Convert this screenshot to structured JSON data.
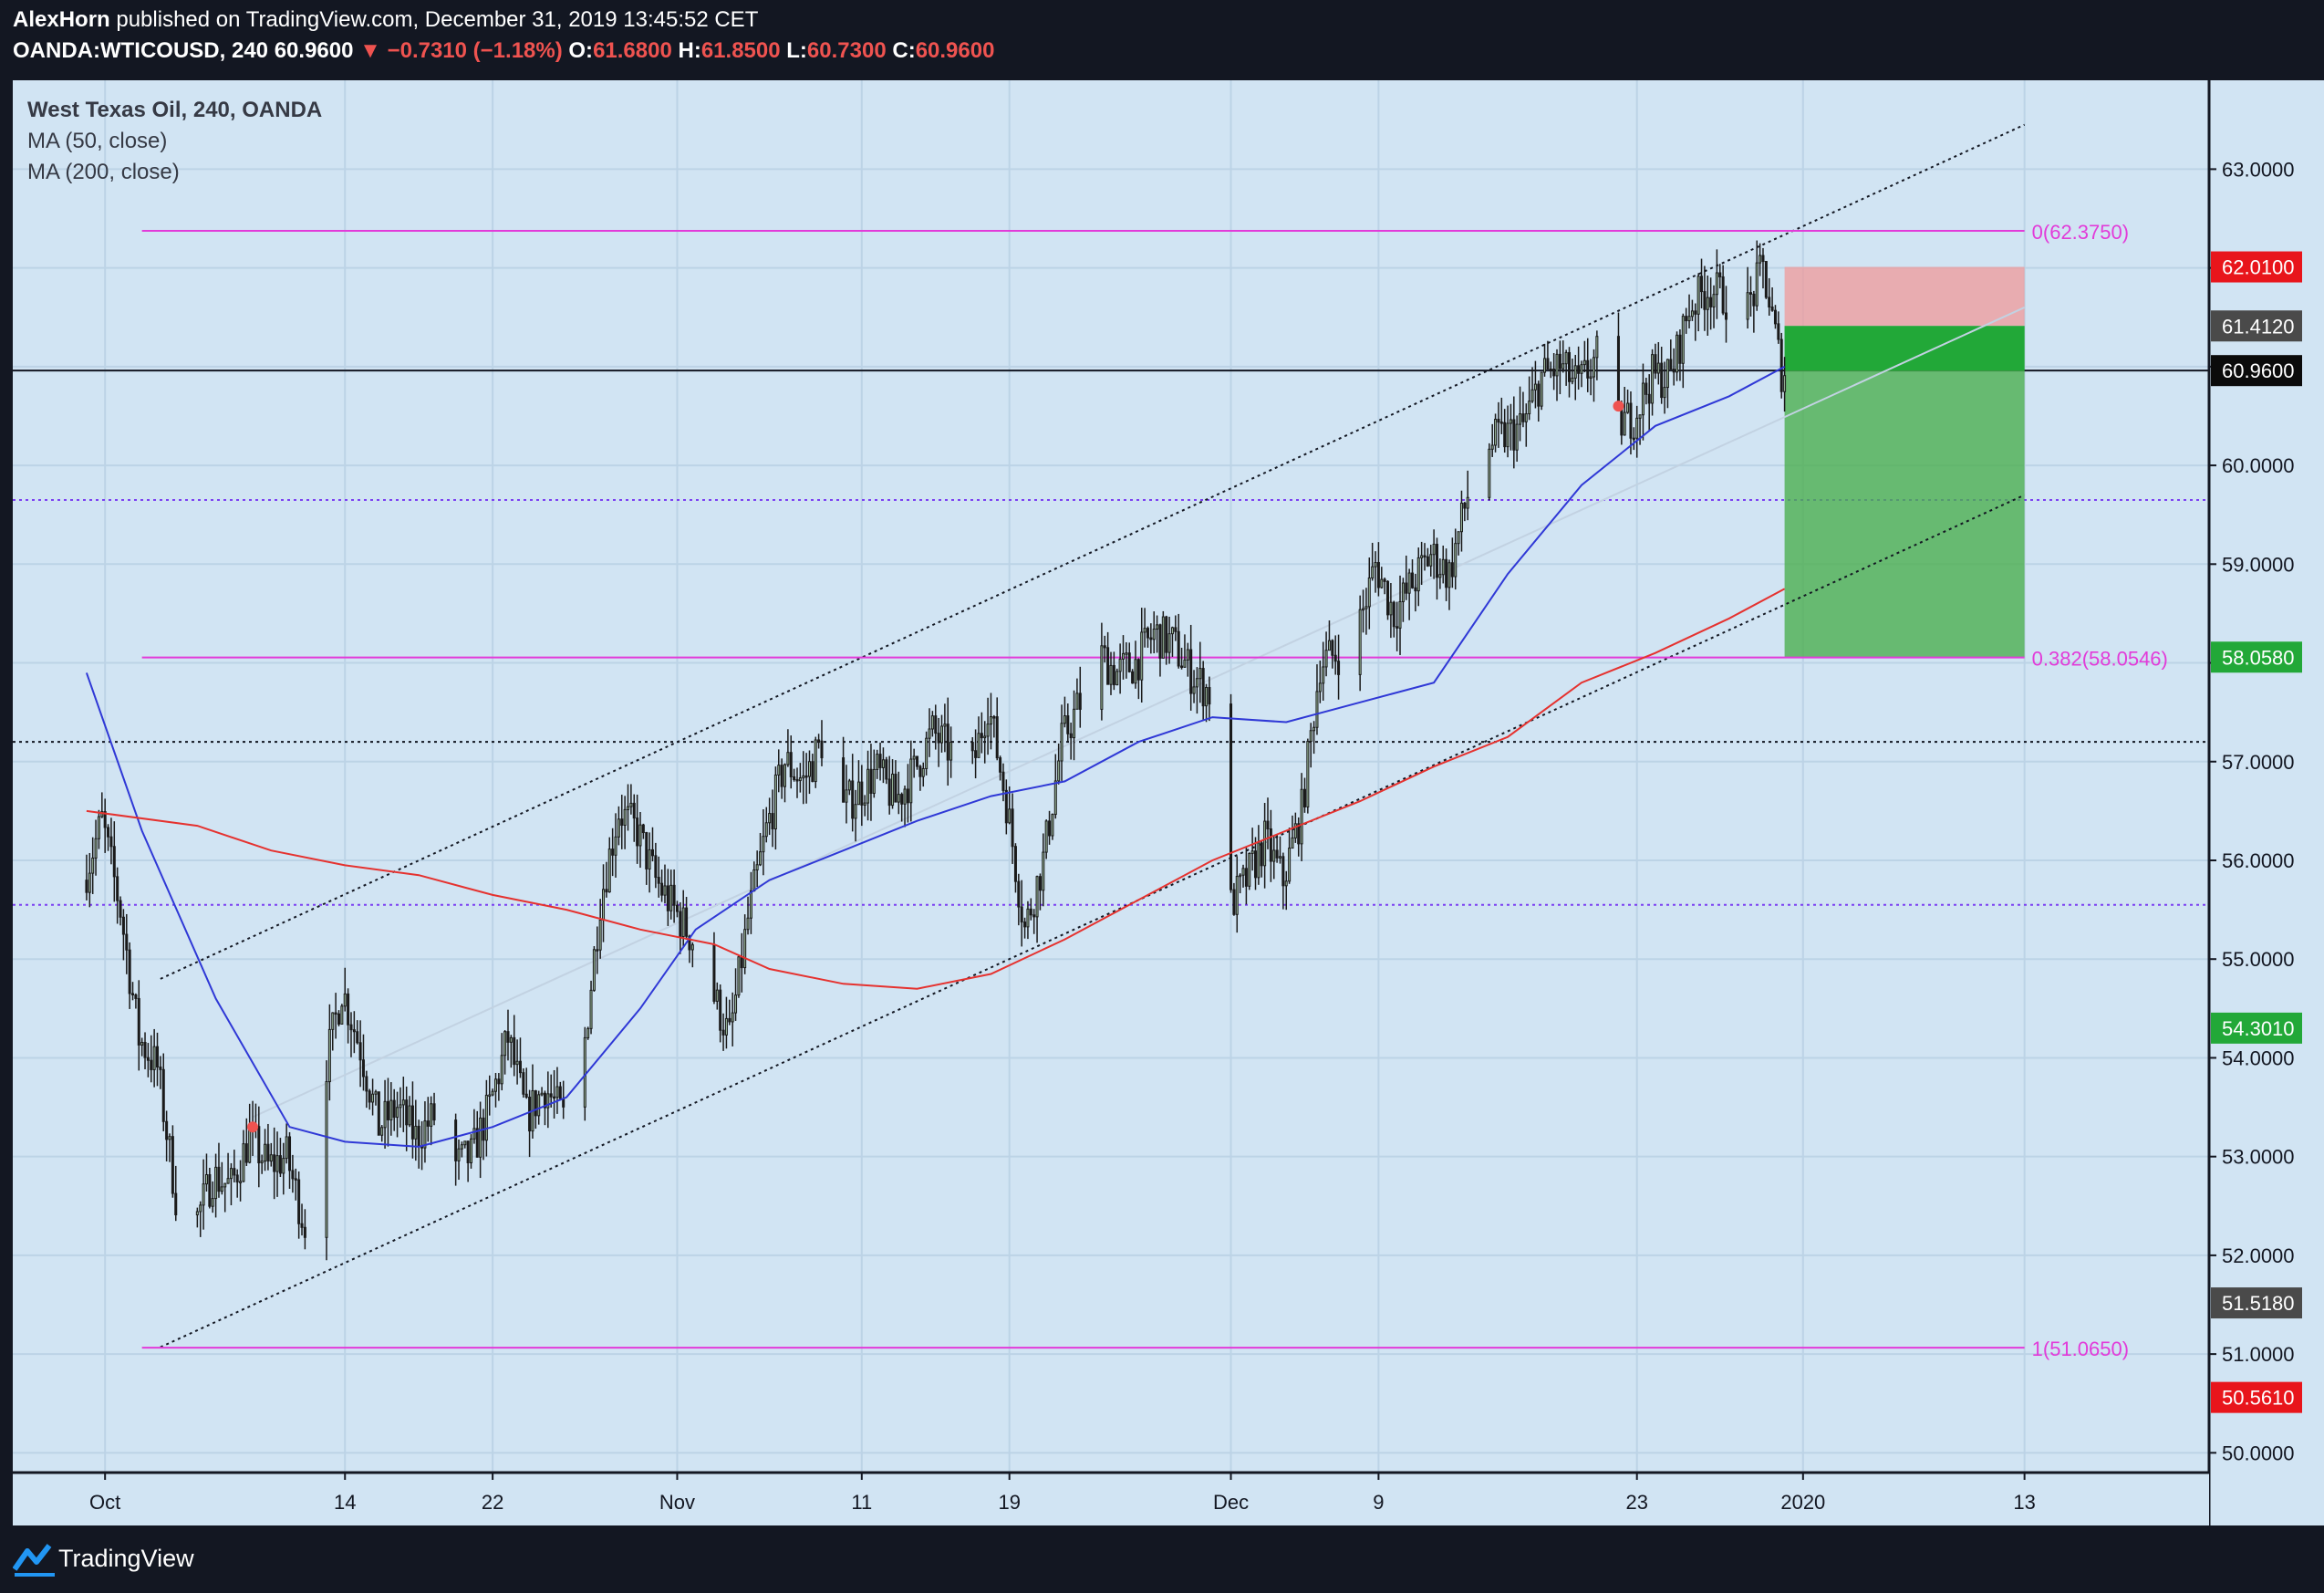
{
  "header": {
    "author": "AlexHorn",
    "published_text": "published on TradingView.com, December 31, 2019 13:45:52 CET",
    "symbol": "OANDA:WTICOUSD",
    "interval": "240",
    "last": "60.9600",
    "change": "−0.7310 (−1.18%)",
    "o_label": "O:",
    "o_value": "61.6800",
    "h_label": "H:",
    "h_value": "61.8500",
    "l_label": "L:",
    "l_value": "60.7300",
    "c_label": "C:",
    "c_value": "60.9600"
  },
  "legend": {
    "title": "West Texas Oil, 240, OANDA",
    "ma50": "MA (50, close)",
    "ma200": "MA (200, close)"
  },
  "footer": {
    "brand": "TradingView"
  },
  "colors": {
    "plot_bg": "#d1e4f3",
    "frame": "#131722",
    "ma50": "#2f38d6",
    "ma200": "#e5322f",
    "fib": "#e23bd9",
    "candle_up": "#9ab89a",
    "candle_down": "#1a1a1a",
    "stop_zone": "#ef9a9a",
    "target_zone": "#4caf50",
    "target_dark": "#22a838"
  },
  "chart_data": {
    "type": "candlestick",
    "title": "West Texas Oil, 240, OANDA",
    "y_axis": {
      "range": [
        49.8,
        63.9
      ],
      "tick_labels": [
        "63.0000",
        "62.0000",
        "61.0000",
        "60.0000",
        "59.0000",
        "58.0000",
        "57.0000",
        "56.0000",
        "55.0000",
        "54.0000",
        "53.0000",
        "52.0000",
        "51.0000",
        "50.0000"
      ],
      "tick_values": [
        63,
        62,
        61,
        60,
        59,
        58,
        57,
        56,
        55,
        54,
        53,
        52,
        51,
        50
      ]
    },
    "x_axis": {
      "tick_labels": [
        "Oct",
        "14",
        "22",
        "Nov",
        "11",
        "19",
        "Dec",
        "9",
        "23",
        "2020",
        "13"
      ],
      "tick_dates": [
        "2019-10-01",
        "2019-10-14",
        "2019-10-22",
        "2019-11-01",
        "2019-11-11",
        "2019-11-19",
        "2019-12-01",
        "2019-12-09",
        "2019-12-23",
        "2020-01-01",
        "2020-01-13"
      ]
    },
    "price_path": [
      [
        "2019-09-30",
        55.8
      ],
      [
        "2019-10-01",
        56.4
      ],
      [
        "2019-10-02",
        55.5
      ],
      [
        "2019-10-03",
        54.2
      ],
      [
        "2019-10-04",
        53.9
      ],
      [
        "2019-10-05",
        52.6
      ],
      [
        "2019-10-06",
        52.3
      ],
      [
        "2019-10-07",
        52.8
      ],
      [
        "2019-10-08",
        52.7
      ],
      [
        "2019-10-09",
        53.2
      ],
      [
        "2019-10-10",
        52.9
      ],
      [
        "2019-10-11",
        53.0
      ],
      [
        "2019-10-12",
        52.3
      ],
      [
        "2019-10-13",
        53.8
      ],
      [
        "2019-10-14",
        54.7
      ],
      [
        "2019-10-15",
        54.1
      ],
      [
        "2019-10-16",
        53.3
      ],
      [
        "2019-10-17",
        53.5
      ],
      [
        "2019-10-18",
        53.2
      ],
      [
        "2019-10-19",
        53.4
      ],
      [
        "2019-10-20",
        52.9
      ],
      [
        "2019-10-21",
        53.0
      ],
      [
        "2019-10-22",
        53.5
      ],
      [
        "2019-10-23",
        54.2
      ],
      [
        "2019-10-24",
        53.4
      ],
      [
        "2019-10-25",
        53.7
      ],
      [
        "2019-10-26",
        53.4
      ],
      [
        "2019-10-27",
        53.9
      ],
      [
        "2019-10-28",
        55.6
      ],
      [
        "2019-10-29",
        56.5
      ],
      [
        "2019-10-30",
        56.3
      ],
      [
        "2019-10-31",
        55.8
      ],
      [
        "2019-11-01",
        55.5
      ],
      [
        "2019-11-02",
        55.2
      ],
      [
        "2019-11-03",
        54.7
      ],
      [
        "2019-11-04",
        54.2
      ],
      [
        "2019-11-05",
        55.4
      ],
      [
        "2019-11-06",
        56.3
      ],
      [
        "2019-11-07",
        57.0
      ],
      [
        "2019-11-08",
        56.8
      ],
      [
        "2019-11-09",
        57.2
      ],
      [
        "2019-11-10",
        56.5
      ],
      [
        "2019-11-11",
        56.7
      ],
      [
        "2019-11-12",
        56.9
      ],
      [
        "2019-11-13",
        56.6
      ],
      [
        "2019-11-14",
        56.9
      ],
      [
        "2019-11-15",
        57.3
      ],
      [
        "2019-11-16",
        57.1
      ],
      [
        "2019-11-17",
        56.8
      ],
      [
        "2019-11-18",
        57.6
      ],
      [
        "2019-11-19",
        56.6
      ],
      [
        "2019-11-20",
        55.3
      ],
      [
        "2019-11-21",
        56.0
      ],
      [
        "2019-11-22",
        57.2
      ],
      [
        "2019-11-23",
        57.6
      ],
      [
        "2019-11-24",
        58.1
      ],
      [
        "2019-11-25",
        57.9
      ],
      [
        "2019-11-26",
        58.0
      ],
      [
        "2019-11-27",
        58.3
      ],
      [
        "2019-11-28",
        58.2
      ],
      [
        "2019-11-29",
        57.9
      ],
      [
        "2019-11-30",
        57.7
      ],
      [
        "2019-12-01",
        55.5
      ],
      [
        "2019-12-02",
        55.8
      ],
      [
        "2019-12-03",
        56.2
      ],
      [
        "2019-12-04",
        55.8
      ],
      [
        "2019-12-05",
        56.5
      ],
      [
        "2019-12-06",
        58.0
      ],
      [
        "2019-12-07",
        58.1
      ],
      [
        "2019-12-08",
        58.3
      ],
      [
        "2019-12-09",
        59.0
      ],
      [
        "2019-12-10",
        58.5
      ],
      [
        "2019-12-11",
        58.8
      ],
      [
        "2019-12-12",
        59.1
      ],
      [
        "2019-12-13",
        58.9
      ],
      [
        "2019-12-14",
        59.7
      ],
      [
        "2019-12-15",
        60.2
      ],
      [
        "2019-12-16",
        60.3
      ],
      [
        "2019-12-17",
        60.4
      ],
      [
        "2019-12-18",
        60.9
      ],
      [
        "2019-12-19",
        61.0
      ],
      [
        "2019-12-20",
        60.8
      ],
      [
        "2019-12-21",
        61.1
      ],
      [
        "2019-12-22",
        60.4
      ],
      [
        "2019-12-23",
        60.5
      ],
      [
        "2019-12-24",
        60.9
      ],
      [
        "2019-12-25",
        60.9
      ],
      [
        "2019-12-26",
        61.6
      ],
      [
        "2019-12-27",
        61.8
      ],
      [
        "2019-12-28",
        61.7
      ],
      [
        "2019-12-29",
        61.5
      ],
      [
        "2019-12-30",
        62.0
      ],
      [
        "2019-12-31",
        60.96
      ]
    ],
    "ma50_path": [
      [
        "2019-09-30",
        57.9
      ],
      [
        "2019-10-03",
        56.3
      ],
      [
        "2019-10-07",
        54.6
      ],
      [
        "2019-10-11",
        53.3
      ],
      [
        "2019-10-14",
        53.15
      ],
      [
        "2019-10-18",
        53.1
      ],
      [
        "2019-10-22",
        53.3
      ],
      [
        "2019-10-26",
        53.6
      ],
      [
        "2019-10-30",
        54.5
      ],
      [
        "2019-11-02",
        55.3
      ],
      [
        "2019-11-06",
        55.8
      ],
      [
        "2019-11-10",
        56.1
      ],
      [
        "2019-11-14",
        56.4
      ],
      [
        "2019-11-18",
        56.65
      ],
      [
        "2019-11-22",
        56.8
      ],
      [
        "2019-11-26",
        57.2
      ],
      [
        "2019-11-30",
        57.45
      ],
      [
        "2019-12-04",
        57.4
      ],
      [
        "2019-12-08",
        57.6
      ],
      [
        "2019-12-12",
        57.8
      ],
      [
        "2019-12-16",
        58.9
      ],
      [
        "2019-12-20",
        59.8
      ],
      [
        "2019-12-24",
        60.4
      ],
      [
        "2019-12-28",
        60.7
      ],
      [
        "2019-12-31",
        61.0
      ]
    ],
    "ma200_path": [
      [
        "2019-09-30",
        56.5
      ],
      [
        "2019-10-06",
        56.35
      ],
      [
        "2019-10-10",
        56.1
      ],
      [
        "2019-10-14",
        55.95
      ],
      [
        "2019-10-18",
        55.85
      ],
      [
        "2019-10-22",
        55.65
      ],
      [
        "2019-10-26",
        55.5
      ],
      [
        "2019-10-30",
        55.3
      ],
      [
        "2019-11-03",
        55.15
      ],
      [
        "2019-11-06",
        54.9
      ],
      [
        "2019-11-10",
        54.75
      ],
      [
        "2019-11-14",
        54.7
      ],
      [
        "2019-11-18",
        54.85
      ],
      [
        "2019-11-22",
        55.2
      ],
      [
        "2019-11-26",
        55.6
      ],
      [
        "2019-11-30",
        56.0
      ],
      [
        "2019-12-04",
        56.3
      ],
      [
        "2019-12-08",
        56.6
      ],
      [
        "2019-12-12",
        56.95
      ],
      [
        "2019-12-16",
        57.25
      ],
      [
        "2019-12-20",
        57.8
      ],
      [
        "2019-12-24",
        58.1
      ],
      [
        "2019-12-28",
        58.45
      ],
      [
        "2019-12-31",
        58.75
      ]
    ],
    "fib_levels": [
      {
        "value": 62.375,
        "label": "0(62.3750)"
      },
      {
        "value": 58.0546,
        "label": "0.382(58.0546)"
      },
      {
        "value": 51.065,
        "label": "1(51.0650)"
      }
    ],
    "horizontal_lines": [
      {
        "value": 59.65,
        "style": "dotted",
        "color": "#7b3ff2"
      },
      {
        "value": 57.2,
        "style": "dotted",
        "color": "#131722"
      },
      {
        "value": 55.55,
        "style": "dotted",
        "color": "#7b3ff2"
      },
      {
        "value": 60.96,
        "style": "solid",
        "color": "#131722"
      }
    ],
    "channel": {
      "lower": [
        [
          "2019-10-04",
          51.07
        ],
        [
          "2020-01-13",
          59.7
        ]
      ],
      "upper": [
        [
          "2019-10-04",
          54.8
        ],
        [
          "2020-01-13",
          63.45
        ]
      ]
    },
    "position": {
      "start": "2019-12-31",
      "end": "2020-01-13",
      "stop": 62.01,
      "entry": 61.412,
      "target": 58.058
    },
    "price_labels": [
      {
        "value": 62.01,
        "text": "62.0100",
        "color": "#e8151b"
      },
      {
        "value": 61.412,
        "text": "61.4120",
        "color": "#4a4a4a"
      },
      {
        "value": 60.96,
        "text": "60.9600",
        "color": "#0b0b0b"
      },
      {
        "value": 58.058,
        "text": "58.0580",
        "color": "#22a838"
      },
      {
        "value": 54.301,
        "text": "54.3010",
        "color": "#22a838"
      },
      {
        "value": 51.518,
        "text": "51.5180",
        "color": "#4a4a4a"
      },
      {
        "value": 50.561,
        "text": "50.5610",
        "color": "#e8151b"
      }
    ],
    "grid": true
  }
}
